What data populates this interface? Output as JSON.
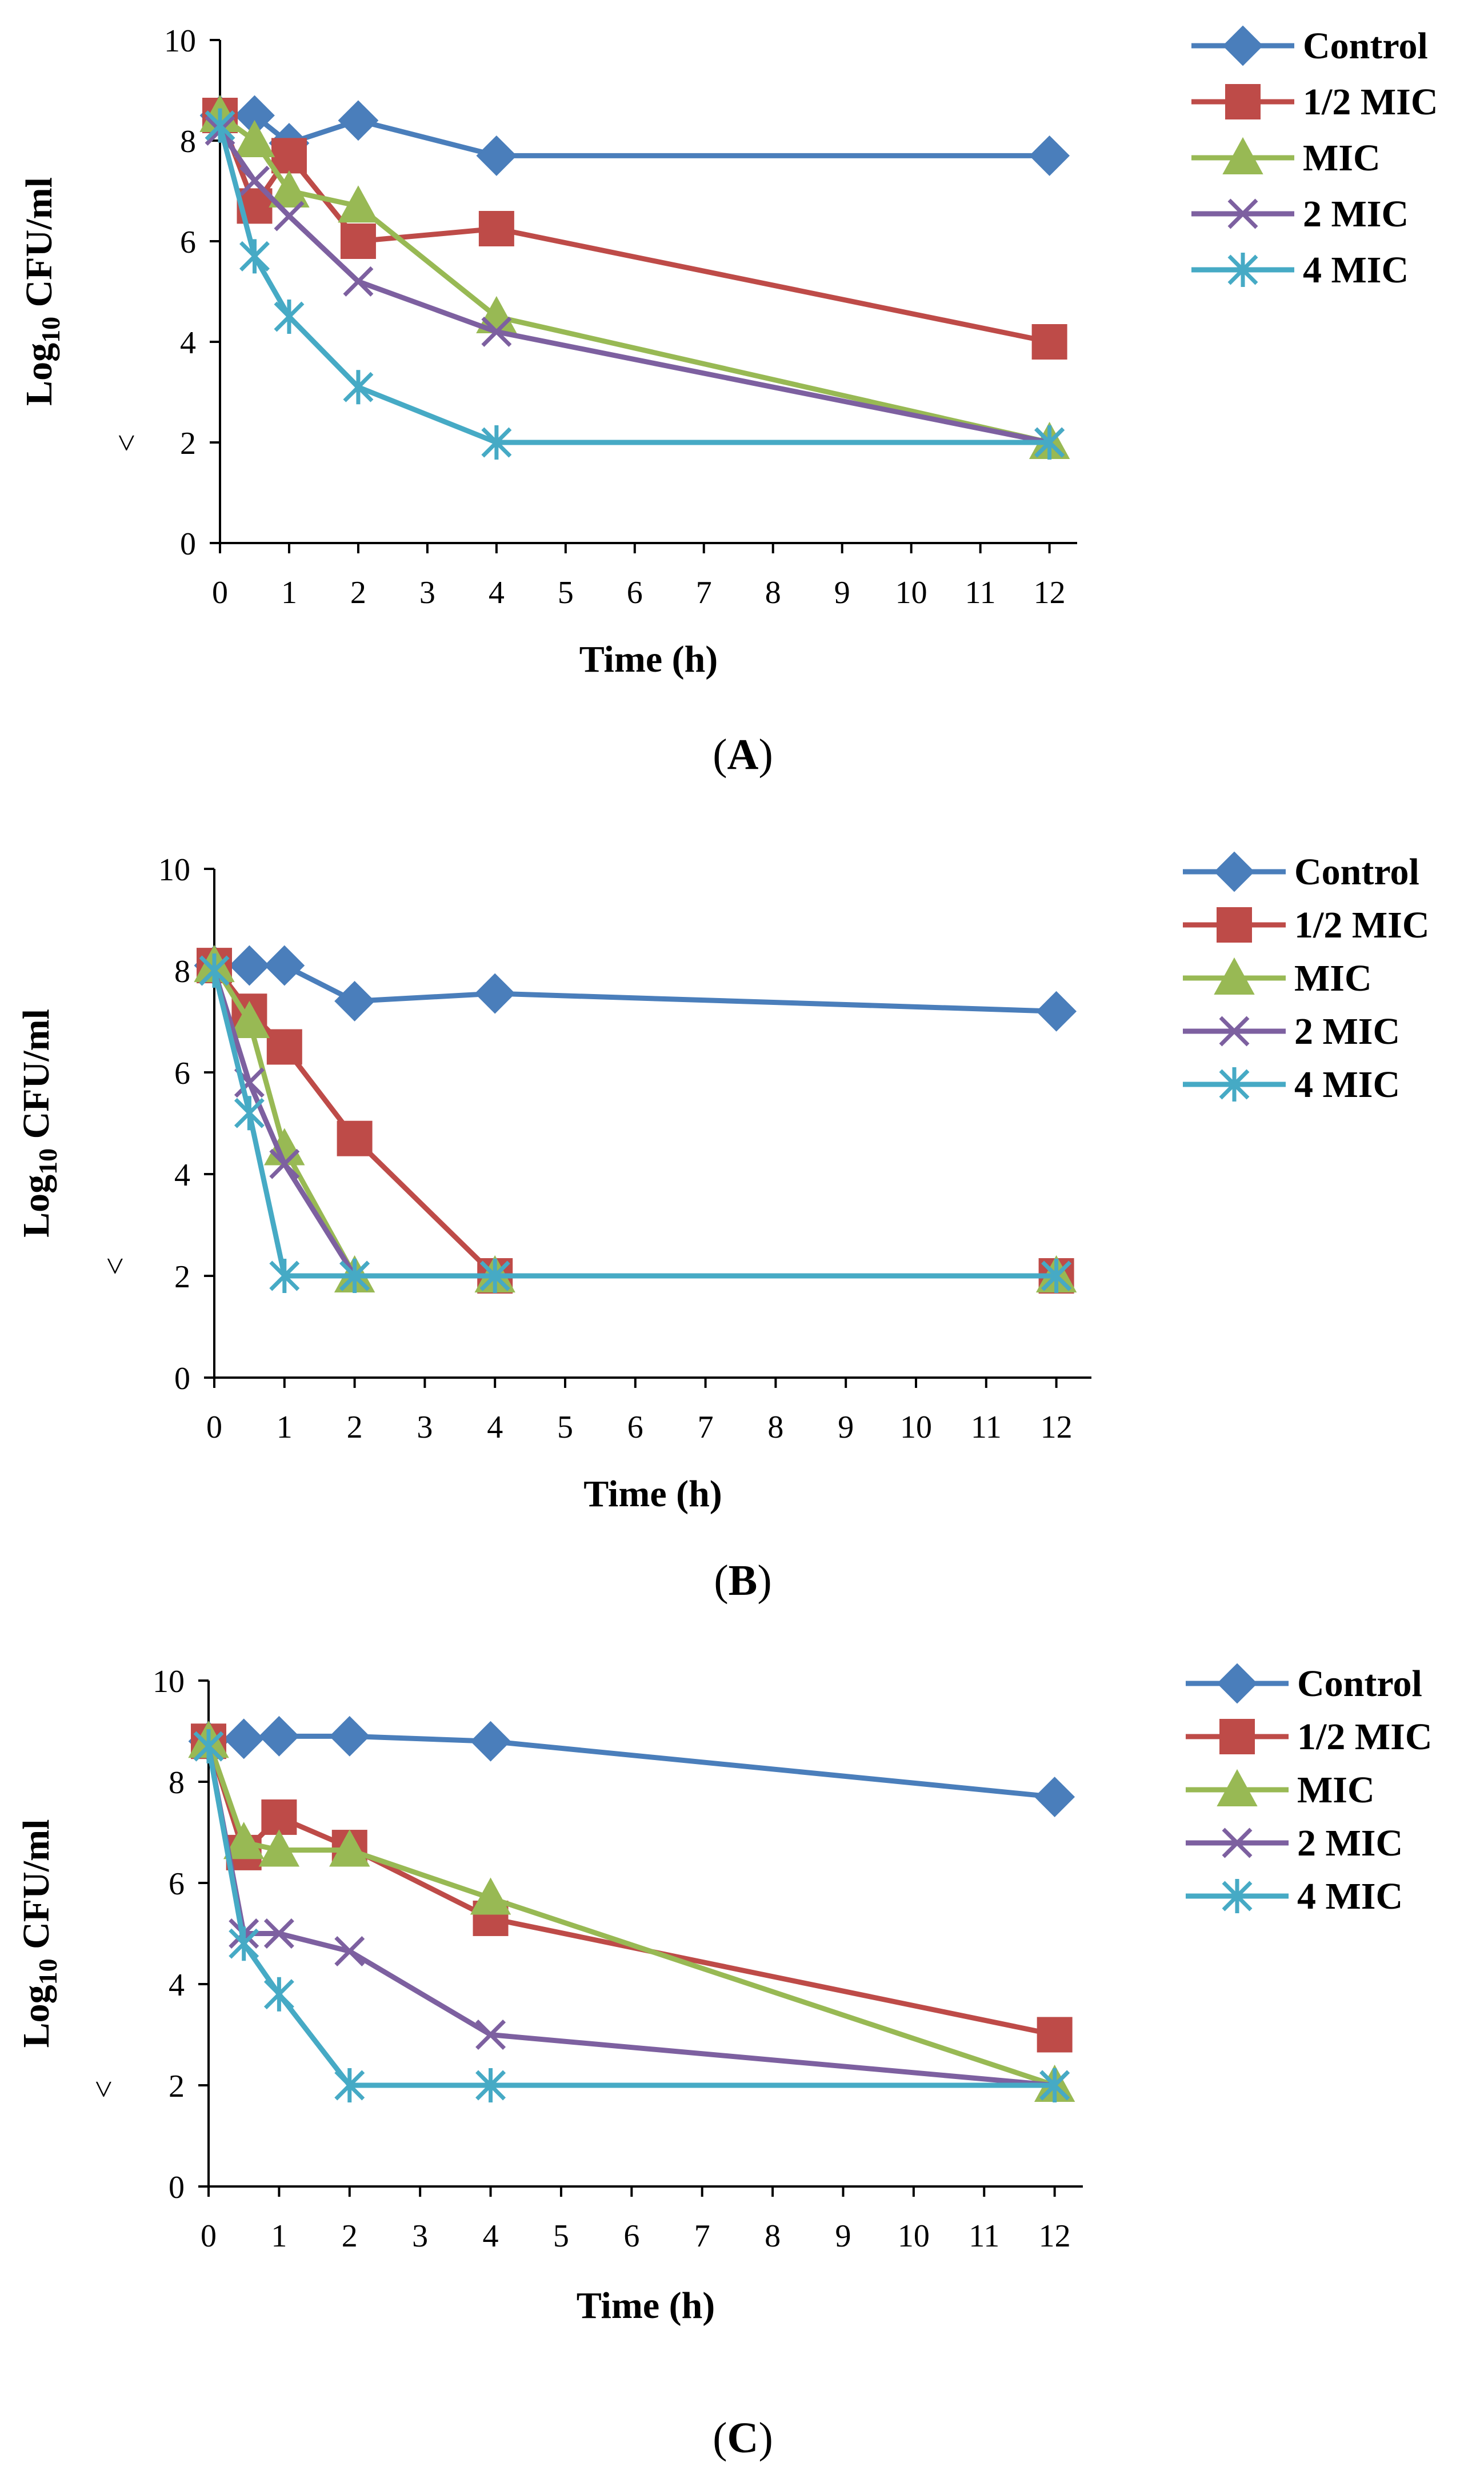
{
  "chart_data": [
    {
      "panel": "A",
      "type": "line",
      "xlabel": "Time (h)",
      "ylabel": "Log10 CFU/ml",
      "ylabel_base": "Log",
      "ylabel_sub": "10",
      "ylabel_rest": " CFU/ml",
      "lod_marker": "<",
      "xlim": [
        0,
        12.4
      ],
      "ylim": [
        0,
        10
      ],
      "xticks": [
        "0",
        "1",
        "2",
        "3",
        "4",
        "5",
        "6",
        "7",
        "8",
        "9",
        "10",
        "11",
        "12"
      ],
      "yticks": [
        "0",
        "2",
        "4",
        "6",
        "8",
        "10"
      ],
      "x": [
        0,
        0.5,
        1,
        2,
        4,
        12
      ],
      "series": [
        {
          "name": "Control",
          "values": [
            8.5,
            8.5,
            7.95,
            8.4,
            7.7,
            7.7
          ]
        },
        {
          "name": "1/2 MIC",
          "values": [
            8.5,
            6.7,
            7.7,
            6.0,
            6.25,
            4.0
          ]
        },
        {
          "name": "MIC",
          "values": [
            8.5,
            8.0,
            7.0,
            6.7,
            4.5,
            2.0
          ]
        },
        {
          "name": "2 MIC",
          "values": [
            8.2,
            7.2,
            6.5,
            5.2,
            4.2,
            2.0
          ]
        },
        {
          "name": "4 MIC",
          "values": [
            8.3,
            5.7,
            4.5,
            3.1,
            2.0,
            2.0
          ]
        }
      ]
    },
    {
      "panel": "B",
      "type": "line",
      "xlabel": "Time (h)",
      "ylabel": "Log10 CFU/ml",
      "ylabel_base": "Log",
      "ylabel_sub": "10",
      "ylabel_rest": " CFU/ml",
      "lod_marker": "<",
      "xlim": [
        0,
        12.5
      ],
      "ylim": [
        0,
        10
      ],
      "xticks": [
        "0",
        "1",
        "2",
        "3",
        "4",
        "5",
        "6",
        "7",
        "8",
        "9",
        "10",
        "11",
        "12"
      ],
      "yticks": [
        "0",
        "2",
        "4",
        "6",
        "8",
        "10"
      ],
      "x": [
        0,
        0.5,
        1,
        2,
        4,
        12
      ],
      "series": [
        {
          "name": "Control",
          "values": [
            8.1,
            8.1,
            8.1,
            7.4,
            7.55,
            7.2
          ]
        },
        {
          "name": "1/2 MIC",
          "values": [
            8.1,
            7.2,
            6.5,
            4.7,
            2.0,
            2.0
          ]
        },
        {
          "name": "MIC",
          "values": [
            8.1,
            7.0,
            4.5,
            2.0,
            2.0,
            2.0
          ]
        },
        {
          "name": "2 MIC",
          "values": [
            8.0,
            5.8,
            4.2,
            2.0,
            2.0,
            2.0
          ]
        },
        {
          "name": "4 MIC",
          "values": [
            8.0,
            5.2,
            2.0,
            2.0,
            2.0,
            2.0
          ]
        }
      ]
    },
    {
      "panel": "C",
      "type": "line",
      "xlabel": "Time (h)",
      "ylabel": "Log10 CFU/ml",
      "ylabel_base": "Log",
      "ylabel_sub": "10",
      "ylabel_rest": " CFU/ml",
      "lod_marker": "<",
      "xlim": [
        0,
        12.4
      ],
      "ylim": [
        0,
        10
      ],
      "xticks": [
        "0",
        "1",
        "2",
        "3",
        "4",
        "5",
        "6",
        "7",
        "8",
        "9",
        "10",
        "11",
        "12"
      ],
      "yticks": [
        "0",
        "2",
        "4",
        "6",
        "8",
        "10"
      ],
      "x": [
        0,
        0.5,
        1,
        2,
        4,
        12
      ],
      "series": [
        {
          "name": "Control",
          "values": [
            8.8,
            8.85,
            8.9,
            8.9,
            8.8,
            7.7
          ]
        },
        {
          "name": "1/2 MIC",
          "values": [
            8.8,
            6.6,
            7.3,
            6.7,
            5.3,
            3.0
          ]
        },
        {
          "name": "MIC",
          "values": [
            8.8,
            6.8,
            6.65,
            6.65,
            5.7,
            2.0
          ]
        },
        {
          "name": "2 MIC",
          "values": [
            8.7,
            5.0,
            5.0,
            4.65,
            3.0,
            2.0
          ]
        },
        {
          "name": "4 MIC",
          "values": [
            8.7,
            4.8,
            3.8,
            2.0,
            2.0,
            2.0
          ]
        }
      ]
    }
  ],
  "legend": [
    "Control",
    "1/2 MIC",
    "MIC",
    "2 MIC",
    "4 MIC"
  ],
  "colors": {
    "Control": "#4a7ebb",
    "1/2 MIC": "#be4b48",
    "MIC": "#98b954",
    "2 MIC": "#7d60a0",
    "4 MIC": "#46aac5"
  },
  "markers": {
    "Control": "diamond",
    "1/2 MIC": "square",
    "MIC": "triangle",
    "2 MIC": "x",
    "4 MIC": "asterisk"
  },
  "panel_labels": [
    "A",
    "B",
    "C"
  ]
}
